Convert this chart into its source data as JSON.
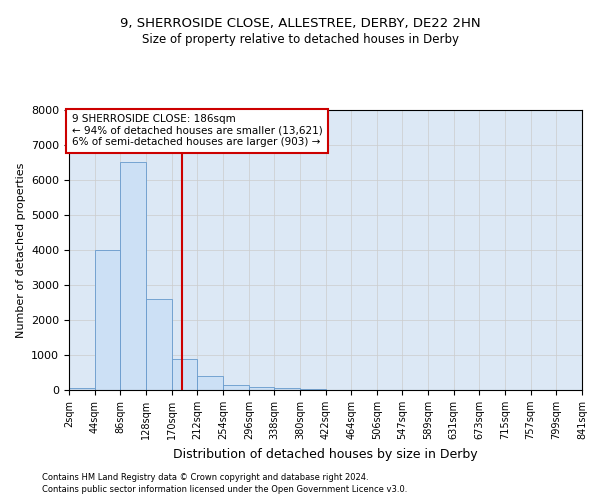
{
  "title_line1": "9, SHERROSIDE CLOSE, ALLESTREE, DERBY, DE22 2HN",
  "title_line2": "Size of property relative to detached houses in Derby",
  "xlabel": "Distribution of detached houses by size in Derby",
  "ylabel": "Number of detached properties",
  "footer_line1": "Contains HM Land Registry data © Crown copyright and database right 2024.",
  "footer_line2": "Contains public sector information licensed under the Open Government Licence v3.0.",
  "annotation_line1": "9 SHERROSIDE CLOSE: 186sqm",
  "annotation_line2": "← 94% of detached houses are smaller (13,621)",
  "annotation_line3": "6% of semi-detached houses are larger (903) →",
  "property_size": 186,
  "bin_edges": [
    2,
    44,
    86,
    128,
    170,
    212,
    254,
    296,
    338,
    380,
    422,
    464,
    506,
    547,
    589,
    631,
    673,
    715,
    757,
    799,
    841
  ],
  "bar_heights": [
    50,
    4000,
    6500,
    2600,
    900,
    400,
    150,
    80,
    50,
    30,
    10,
    5,
    2,
    1,
    1,
    0,
    0,
    0,
    0,
    0
  ],
  "bar_color": "#cce0f5",
  "bar_edge_color": "#6699cc",
  "vline_color": "#cc0000",
  "vline_x": 186,
  "annotation_box_color": "#cc0000",
  "grid_color": "#cccccc",
  "bg_color": "#dce8f5",
  "ylim": [
    0,
    8000
  ],
  "yticks": [
    0,
    1000,
    2000,
    3000,
    4000,
    5000,
    6000,
    7000,
    8000
  ]
}
